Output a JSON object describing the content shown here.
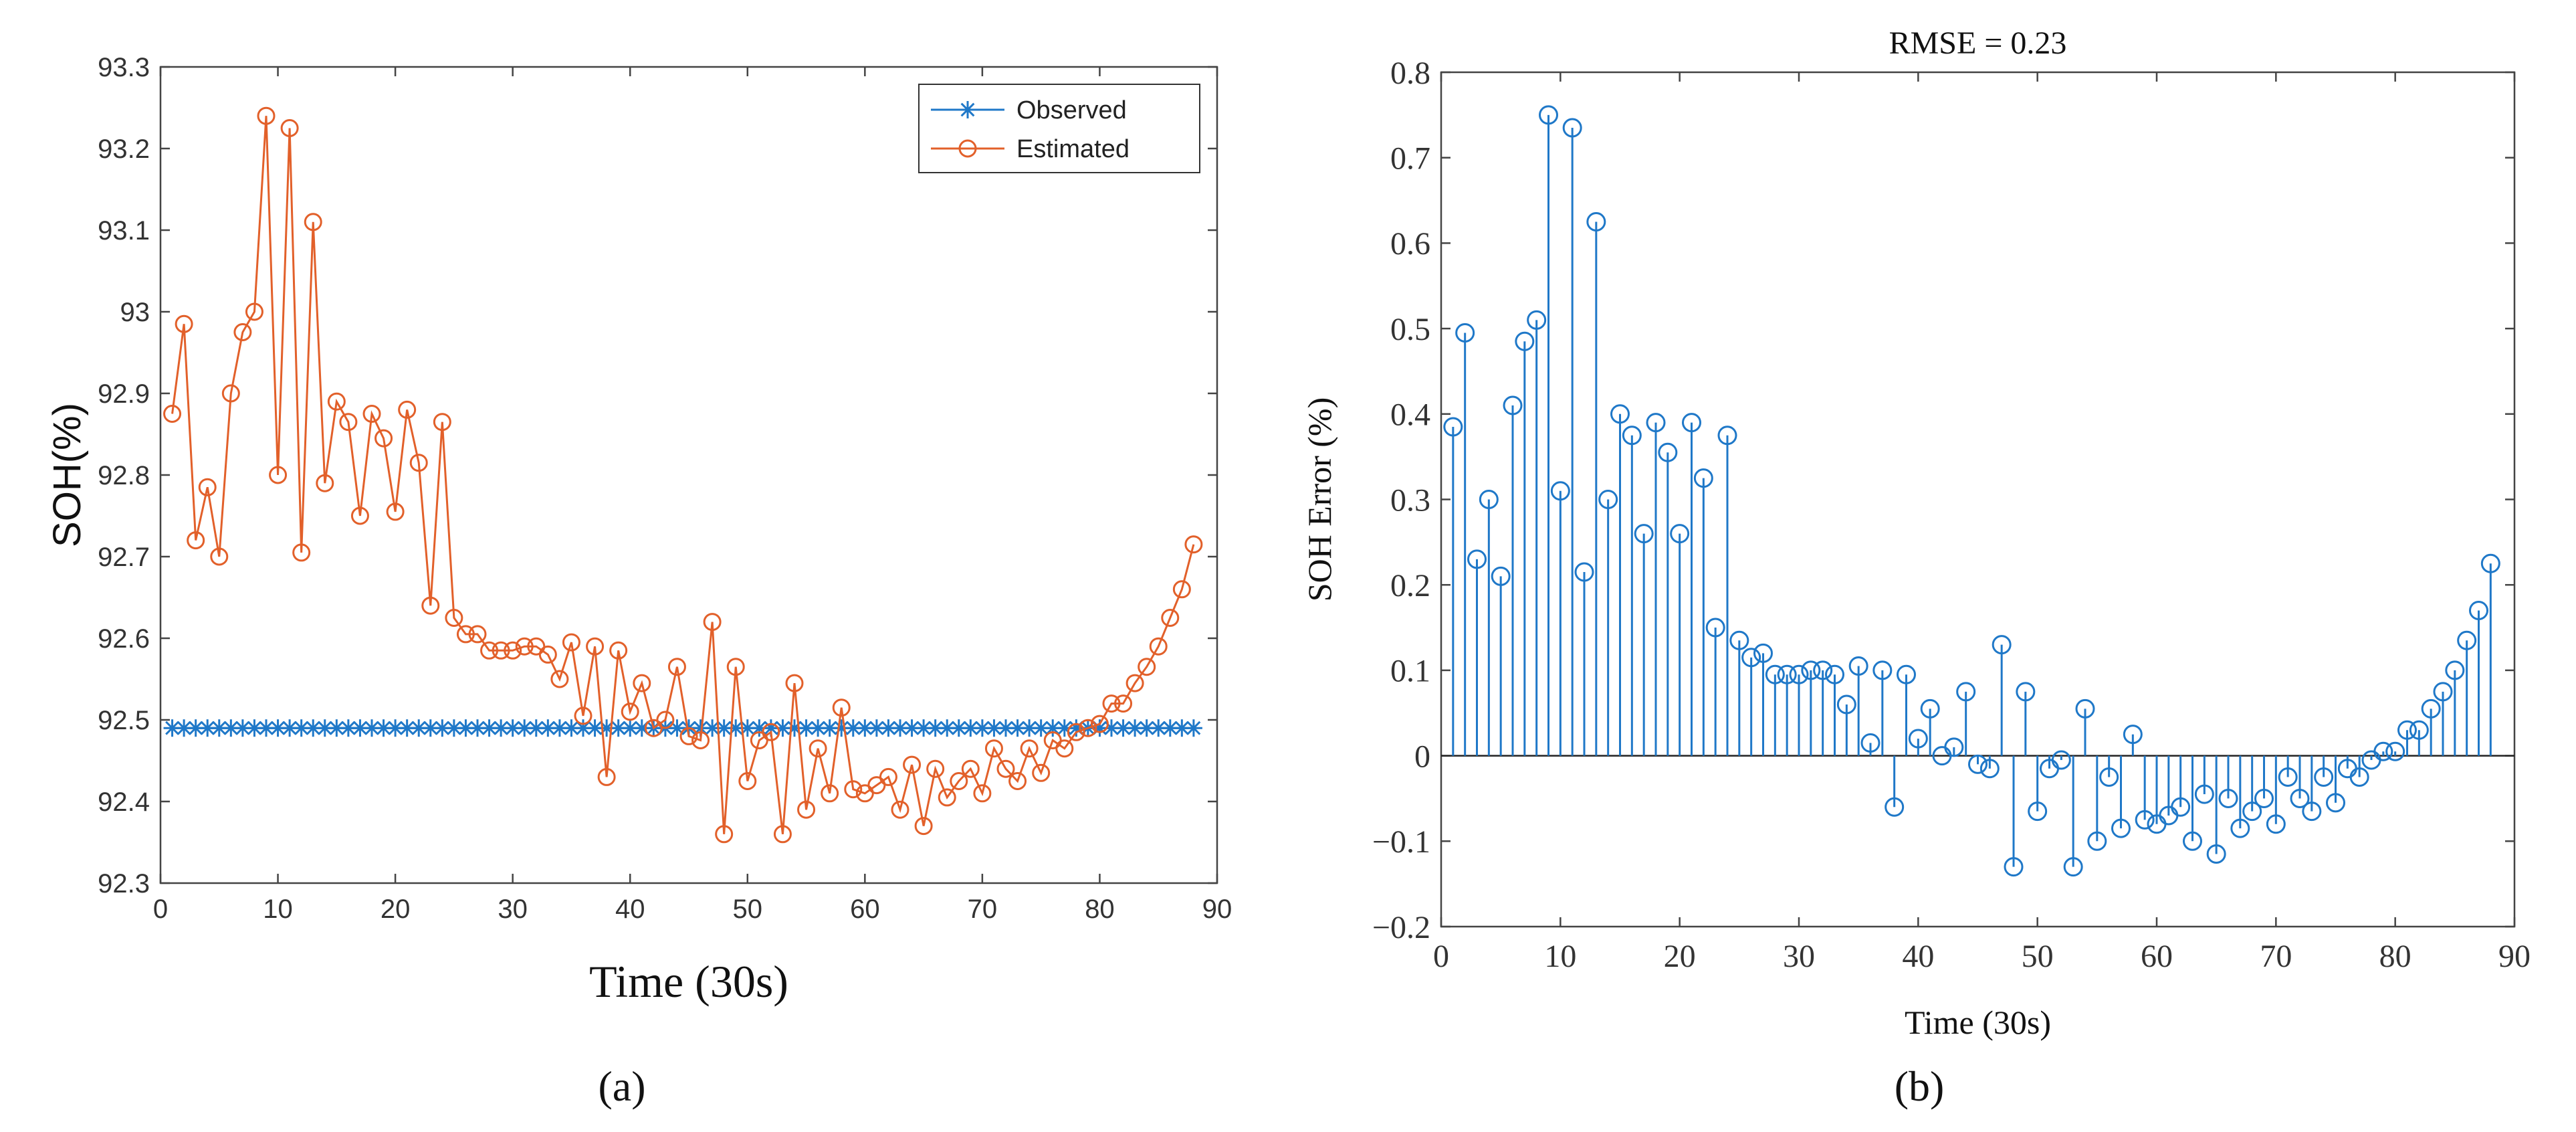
{
  "charts": [
    {
      "type": "line",
      "xlabel": "Time (30s)",
      "ylabel": "SOH(%)",
      "xlim": [
        0,
        90
      ],
      "ylim": [
        92.3,
        93.3
      ],
      "xticks": [
        "0",
        "10",
        "20",
        "30",
        "40",
        "50",
        "60",
        "70",
        "80",
        "90"
      ],
      "yticks": [
        "92.3",
        "92.4",
        "92.5",
        "92.6",
        "92.7",
        "92.8",
        "92.9",
        "93",
        "93.1",
        "93.2",
        "93.3"
      ],
      "grid": false,
      "legend_position": "top-right",
      "panel_label": "(a)",
      "series": [
        {
          "name": "Observed",
          "color": "#1f78c8",
          "marker": "asterisk",
          "x": [
            1,
            2,
            3,
            4,
            5,
            6,
            7,
            8,
            9,
            10,
            11,
            12,
            13,
            14,
            15,
            16,
            17,
            18,
            19,
            20,
            21,
            22,
            23,
            24,
            25,
            26,
            27,
            28,
            29,
            30,
            31,
            32,
            33,
            34,
            35,
            36,
            37,
            38,
            39,
            40,
            41,
            42,
            43,
            44,
            45,
            46,
            47,
            48,
            49,
            50,
            51,
            52,
            53,
            54,
            55,
            56,
            57,
            58,
            59,
            60,
            61,
            62,
            63,
            64,
            65,
            66,
            67,
            68,
            69,
            70,
            71,
            72,
            73,
            74,
            75,
            76,
            77,
            78,
            79,
            80,
            81,
            82,
            83,
            84,
            85,
            86,
            87,
            88
          ],
          "y": [
            92.49,
            92.49,
            92.49,
            92.49,
            92.49,
            92.49,
            92.49,
            92.49,
            92.49,
            92.49,
            92.49,
            92.49,
            92.49,
            92.49,
            92.49,
            92.49,
            92.49,
            92.49,
            92.49,
            92.49,
            92.49,
            92.49,
            92.49,
            92.49,
            92.49,
            92.49,
            92.49,
            92.49,
            92.49,
            92.49,
            92.49,
            92.49,
            92.49,
            92.49,
            92.49,
            92.49,
            92.49,
            92.49,
            92.49,
            92.49,
            92.49,
            92.49,
            92.49,
            92.49,
            92.49,
            92.49,
            92.49,
            92.49,
            92.49,
            92.49,
            92.49,
            92.49,
            92.49,
            92.49,
            92.49,
            92.49,
            92.49,
            92.49,
            92.49,
            92.49,
            92.49,
            92.49,
            92.49,
            92.49,
            92.49,
            92.49,
            92.49,
            92.49,
            92.49,
            92.49,
            92.49,
            92.49,
            92.49,
            92.49,
            92.49,
            92.49,
            92.49,
            92.49,
            92.49,
            92.49,
            92.49,
            92.49,
            92.49,
            92.49,
            92.49,
            92.49,
            92.49,
            92.49
          ]
        },
        {
          "name": "Estimated",
          "color": "#e2602a",
          "marker": "circle",
          "x": [
            1,
            2,
            3,
            4,
            5,
            6,
            7,
            8,
            9,
            10,
            11,
            12,
            13,
            14,
            15,
            16,
            17,
            18,
            19,
            20,
            21,
            22,
            23,
            24,
            25,
            26,
            27,
            28,
            29,
            30,
            31,
            32,
            33,
            34,
            35,
            36,
            37,
            38,
            39,
            40,
            41,
            42,
            43,
            44,
            45,
            46,
            47,
            48,
            49,
            50,
            51,
            52,
            53,
            54,
            55,
            56,
            57,
            58,
            59,
            60,
            61,
            62,
            63,
            64,
            65,
            66,
            67,
            68,
            69,
            70,
            71,
            72,
            73,
            74,
            75,
            76,
            77,
            78,
            79,
            80,
            81,
            82,
            83,
            84,
            85,
            86,
            87,
            88
          ],
          "y": [
            92.875,
            92.985,
            92.72,
            92.785,
            92.7,
            92.9,
            92.975,
            93.0,
            93.24,
            92.8,
            93.225,
            92.705,
            93.11,
            92.79,
            92.89,
            92.865,
            92.75,
            92.875,
            92.845,
            92.755,
            92.88,
            92.815,
            92.64,
            92.865,
            92.625,
            92.605,
            92.605,
            92.585,
            92.585,
            92.585,
            92.59,
            92.59,
            92.58,
            92.55,
            92.595,
            92.505,
            92.59,
            92.43,
            92.585,
            92.51,
            92.545,
            92.49,
            92.5,
            92.565,
            92.48,
            92.475,
            92.62,
            92.36,
            92.565,
            92.425,
            92.475,
            92.485,
            92.36,
            92.545,
            92.39,
            92.465,
            92.41,
            92.515,
            92.415,
            92.41,
            92.42,
            92.43,
            92.39,
            92.445,
            92.37,
            92.44,
            92.405,
            92.425,
            92.44,
            92.41,
            92.465,
            92.44,
            92.425,
            92.465,
            92.435,
            92.475,
            92.465,
            92.485,
            92.49,
            92.495,
            92.52,
            92.52,
            92.545,
            92.565,
            92.59,
            92.625,
            92.66,
            92.715
          ]
        }
      ]
    },
    {
      "type": "stem",
      "title": "RMSE = 0.23",
      "xlabel": "Time (30s)",
      "ylabel": "SOH Error (%)",
      "xlim": [
        0,
        90
      ],
      "ylim": [
        -0.2,
        0.8
      ],
      "xticks": [
        "0",
        "10",
        "20",
        "30",
        "40",
        "50",
        "60",
        "70",
        "80",
        "90"
      ],
      "yticks": [
        "−0.2",
        "−0.1",
        "0",
        "0.1",
        "0.2",
        "0.3",
        "0.4",
        "0.5",
        "0.6",
        "0.7",
        "0.8"
      ],
      "grid": false,
      "panel_label": "(b)",
      "series": [
        {
          "color": "#1f78c8",
          "marker": "circle",
          "x": [
            1,
            2,
            3,
            4,
            5,
            6,
            7,
            8,
            9,
            10,
            11,
            12,
            13,
            14,
            15,
            16,
            17,
            18,
            19,
            20,
            21,
            22,
            23,
            24,
            25,
            26,
            27,
            28,
            29,
            30,
            31,
            32,
            33,
            34,
            35,
            36,
            37,
            38,
            39,
            40,
            41,
            42,
            43,
            44,
            45,
            46,
            47,
            48,
            49,
            50,
            51,
            52,
            53,
            54,
            55,
            56,
            57,
            58,
            59,
            60,
            61,
            62,
            63,
            64,
            65,
            66,
            67,
            68,
            69,
            70,
            71,
            72,
            73,
            74,
            75,
            76,
            77,
            78,
            79,
            80,
            81,
            82,
            83,
            84,
            85,
            86,
            87,
            88
          ],
          "y": [
            0.385,
            0.495,
            0.23,
            0.3,
            0.21,
            0.41,
            0.485,
            0.51,
            0.75,
            0.31,
            0.735,
            0.215,
            0.625,
            0.3,
            0.4,
            0.375,
            0.26,
            0.39,
            0.355,
            0.26,
            0.39,
            0.325,
            0.15,
            0.375,
            0.135,
            0.115,
            0.12,
            0.095,
            0.095,
            0.095,
            0.1,
            0.1,
            0.095,
            0.06,
            0.105,
            0.015,
            0.1,
            -0.06,
            0.095,
            0.02,
            0.055,
            0.0,
            0.01,
            0.075,
            -0.01,
            -0.015,
            0.13,
            -0.13,
            0.075,
            -0.065,
            -0.015,
            -0.005,
            -0.13,
            0.055,
            -0.1,
            -0.025,
            -0.085,
            0.025,
            -0.075,
            -0.08,
            -0.07,
            -0.06,
            -0.1,
            -0.045,
            -0.115,
            -0.05,
            -0.085,
            -0.065,
            -0.05,
            -0.08,
            -0.025,
            -0.05,
            -0.065,
            -0.025,
            -0.055,
            -0.015,
            -0.025,
            -0.005,
            0.005,
            0.005,
            0.03,
            0.03,
            0.055,
            0.075,
            0.1,
            0.135,
            0.17,
            0.225
          ]
        }
      ]
    }
  ]
}
